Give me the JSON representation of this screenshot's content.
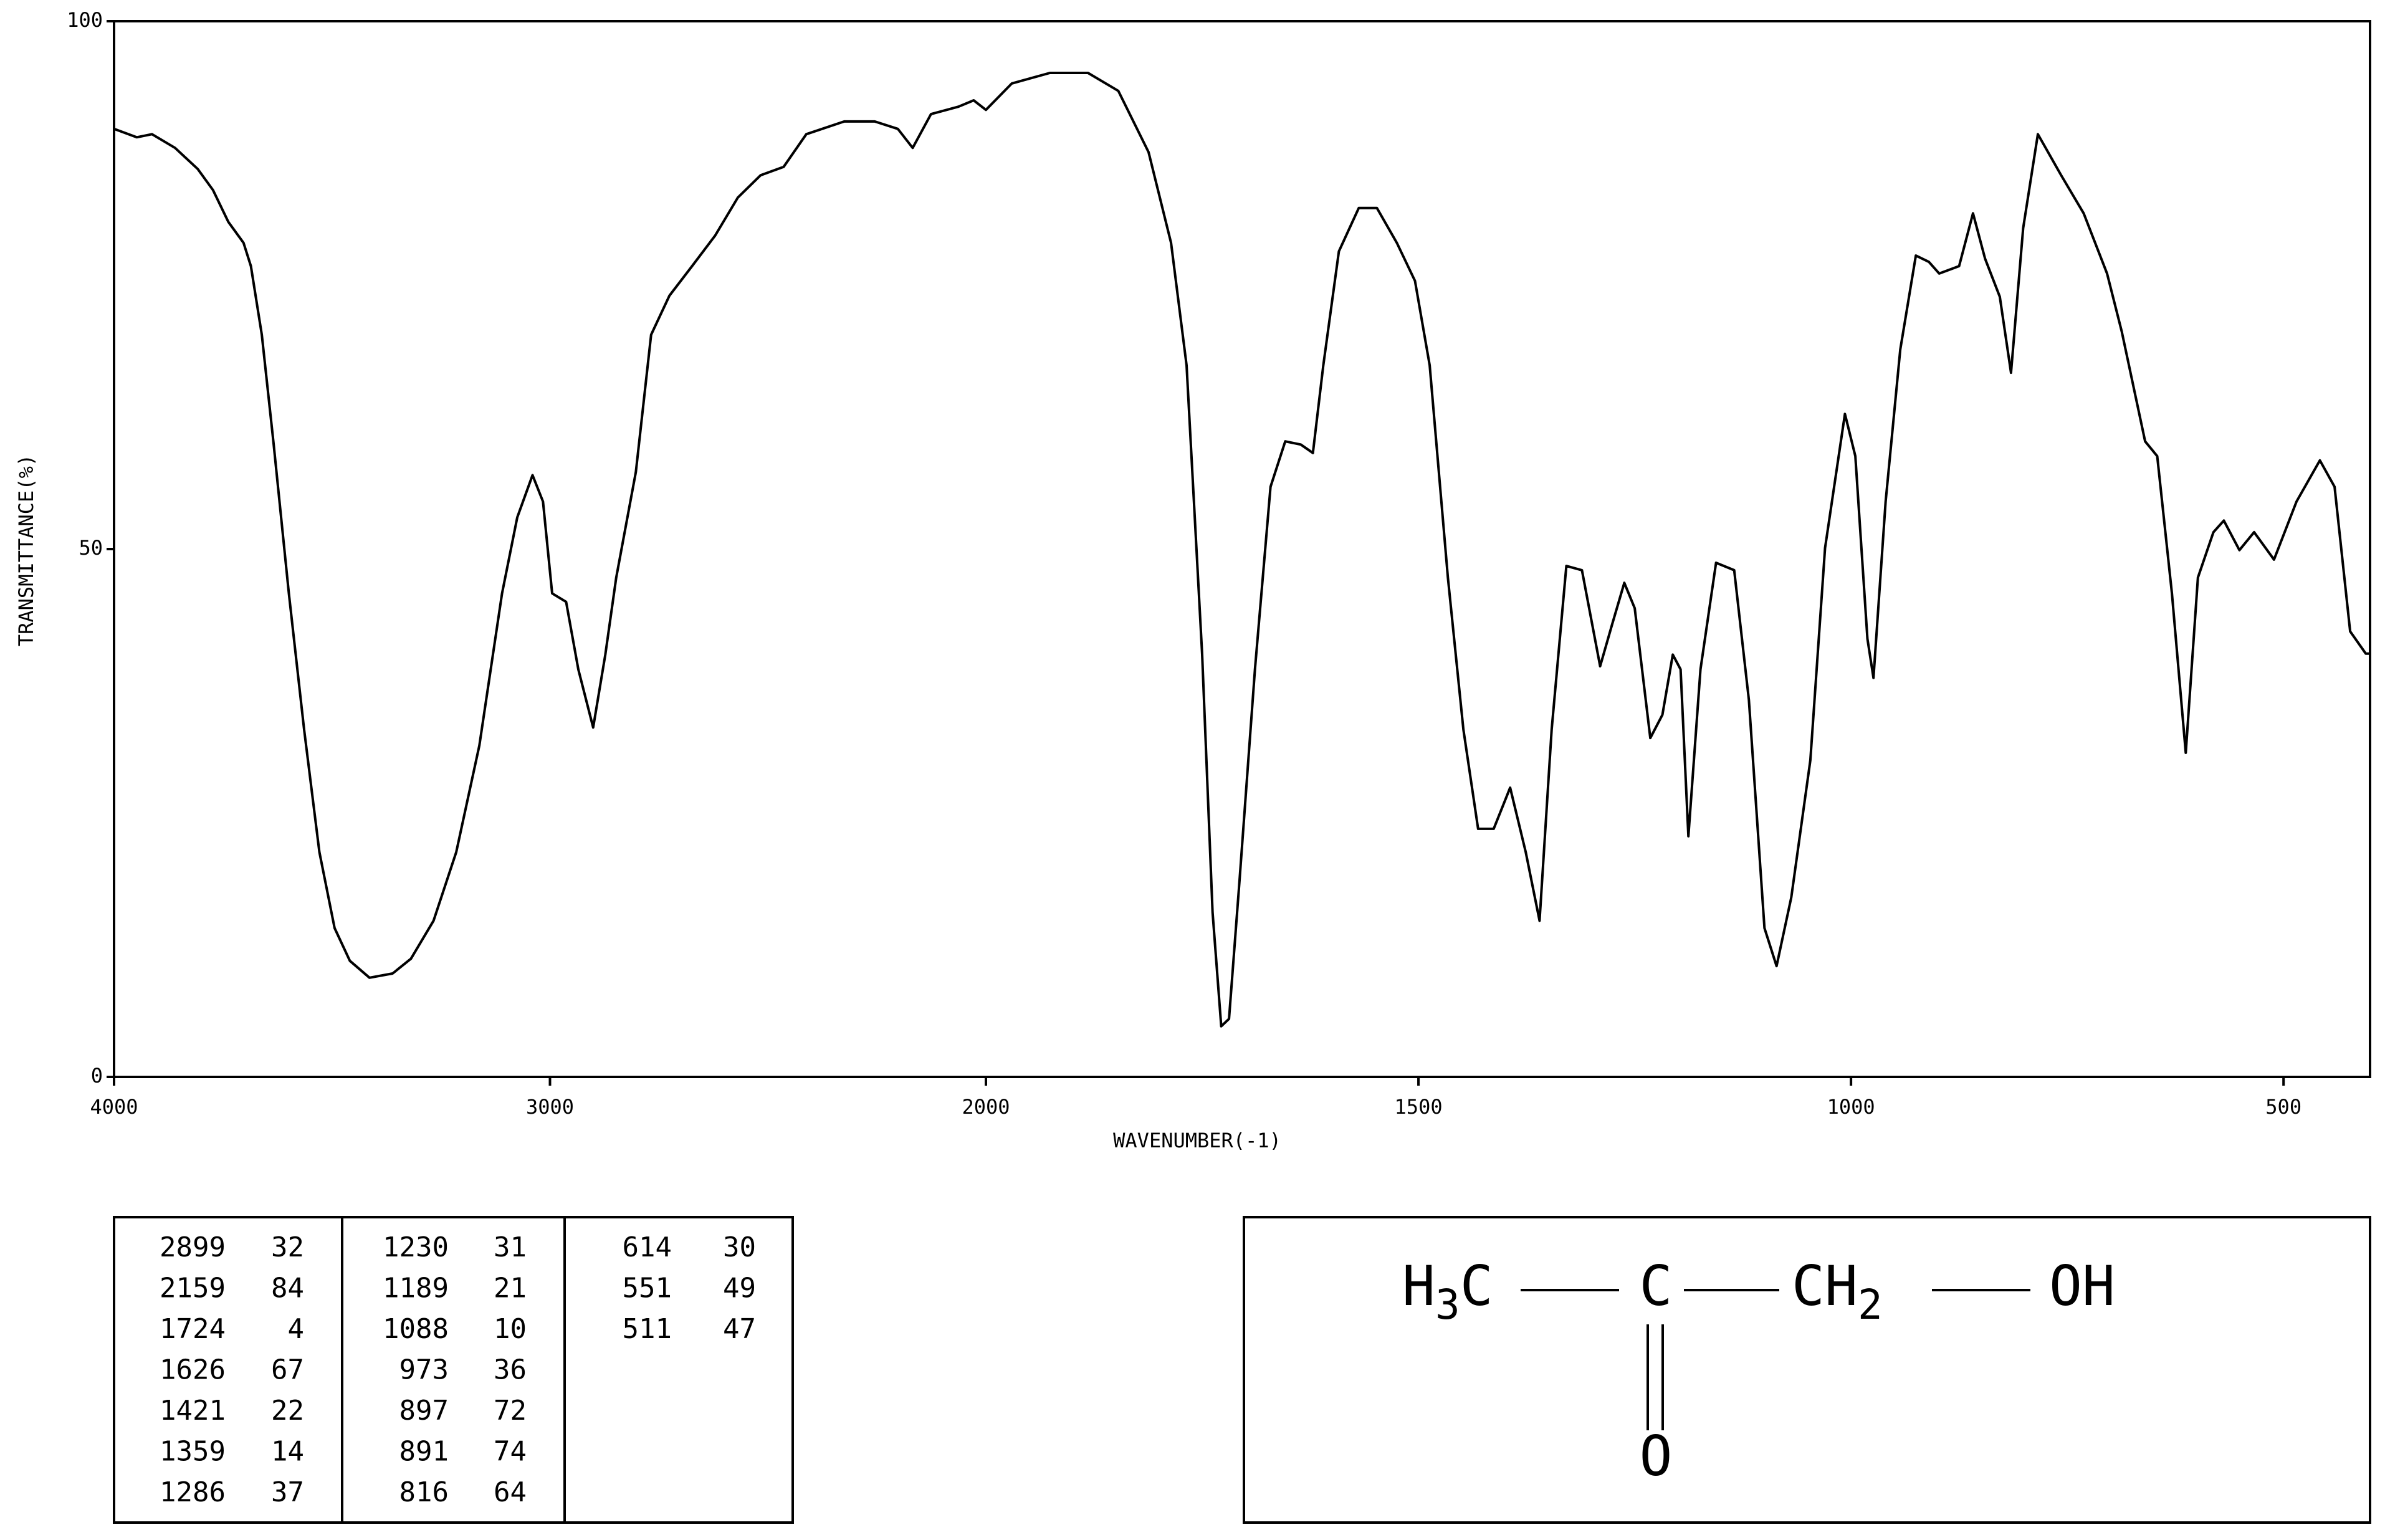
{
  "chart_data": {
    "type": "line",
    "x_label": "WAVENUMBER(-1)",
    "y_label": "TRANSMITTANCE(%)",
    "xlim": [
      4000,
      400
    ],
    "ylim": [
      0,
      100
    ],
    "xticks": [
      4000,
      3000,
      2000,
      1500,
      1000,
      500
    ],
    "yticks": [
      0,
      50,
      100
    ],
    "color": "#000000",
    "x": [
      4000,
      3948,
      3913,
      3860,
      3808,
      3773,
      3738,
      3703,
      3686,
      3661,
      3634,
      3599,
      3564,
      3529,
      3494,
      3459,
      3414,
      3361,
      3319,
      3267,
      3215,
      3162,
      3110,
      3075,
      3040,
      3016,
      2995,
      2963,
      2935,
      2901,
      2873,
      2848,
      2803,
      2768,
      2726,
      2674,
      2621,
      2569,
      2517,
      2464,
      2412,
      2325,
      2255,
      2202,
      2168,
      2126,
      2063,
      2028,
      2000,
      1970,
      1926,
      1882,
      1847,
      1812,
      1786,
      1768,
      1750,
      1738,
      1728,
      1719,
      1707,
      1689,
      1671,
      1654,
      1636,
      1622,
      1610,
      1592,
      1569,
      1548,
      1525,
      1504,
      1487,
      1466,
      1448,
      1431,
      1413,
      1394,
      1376,
      1360,
      1346,
      1329,
      1311,
      1290,
      1276,
      1262,
      1250,
      1232,
      1218,
      1206,
      1197,
      1188,
      1174,
      1156,
      1135,
      1118,
      1100,
      1086,
      1069,
      1047,
      1030,
      1007,
      995,
      981,
      974,
      960,
      943,
      925,
      910,
      898,
      875,
      859,
      845,
      828,
      815,
      801,
      784,
      757,
      731,
      704,
      687,
      660,
      646,
      629,
      613,
      599,
      581,
      569,
      551,
      534,
      511,
      485,
      458,
      441,
      423,
      405,
      400
    ],
    "values": [
      89.8,
      89,
      89.3,
      88,
      86,
      84,
      81,
      79,
      76.8,
      70.3,
      60,
      45.8,
      32.9,
      21.3,
      14.1,
      11,
      9.4,
      9.8,
      11.2,
      14.8,
      21.3,
      31.4,
      45.8,
      53,
      57,
      54.5,
      45.8,
      45,
      38.6,
      33.1,
      40,
      47.3,
      57.3,
      70.3,
      74,
      76.8,
      79.7,
      83.3,
      85.4,
      86.2,
      89.3,
      90.5,
      90.5,
      89.8,
      88,
      91.2,
      91.9,
      92.5,
      91.6,
      94.1,
      95.1,
      95.1,
      93.4,
      87.6,
      79,
      67.4,
      40,
      15.6,
      4.8,
      5.5,
      18.4,
      38.6,
      55.9,
      60.2,
      59.9,
      59.1,
      67.4,
      78.2,
      82.3,
      82.3,
      79,
      75.4,
      67.4,
      47.3,
      32.9,
      23.5,
      23.5,
      27.4,
      21.3,
      14.8,
      32.9,
      48.4,
      48,
      38.9,
      42.9,
      46.8,
      44.4,
      32.1,
      34.3,
      40,
      38.6,
      22.8,
      38.6,
      48.7,
      48,
      35.7,
      14.1,
      10.5,
      17,
      30,
      50.1,
      62.8,
      58.8,
      41.5,
      37.8,
      54.5,
      68.9,
      77.8,
      77.2,
      76.1,
      76.8,
      81.8,
      77.5,
      73.9,
      66.7,
      80.4,
      89.3,
      85.4,
      81.8,
      76.1,
      70.6,
      60.2,
      58.8,
      45.8,
      30.7,
      47.3,
      51.6,
      52.7,
      49.9,
      51.6,
      49,
      54.5,
      58.4,
      55.9,
      42.2,
      40.1,
      40.1
    ]
  },
  "peak_table": [
    [
      [
        2899,
        32
      ],
      [
        2159,
        84
      ],
      [
        1724,
        4
      ],
      [
        1626,
        67
      ],
      [
        1421,
        22
      ],
      [
        1359,
        14
      ],
      [
        1286,
        37
      ]
    ],
    [
      [
        1230,
        31
      ],
      [
        1189,
        21
      ],
      [
        1088,
        10
      ],
      [
        973,
        36
      ],
      [
        897,
        72
      ],
      [
        891,
        74
      ],
      [
        816,
        64
      ]
    ],
    [
      [
        614,
        30
      ],
      [
        551,
        49
      ],
      [
        511,
        47
      ]
    ]
  ],
  "structure": [
    [
      "H",
      "3",
      "C"
    ],
    [
      "C"
    ],
    [
      "CH",
      "2"
    ],
    [
      "OH"
    ],
    [
      "O"
    ]
  ]
}
